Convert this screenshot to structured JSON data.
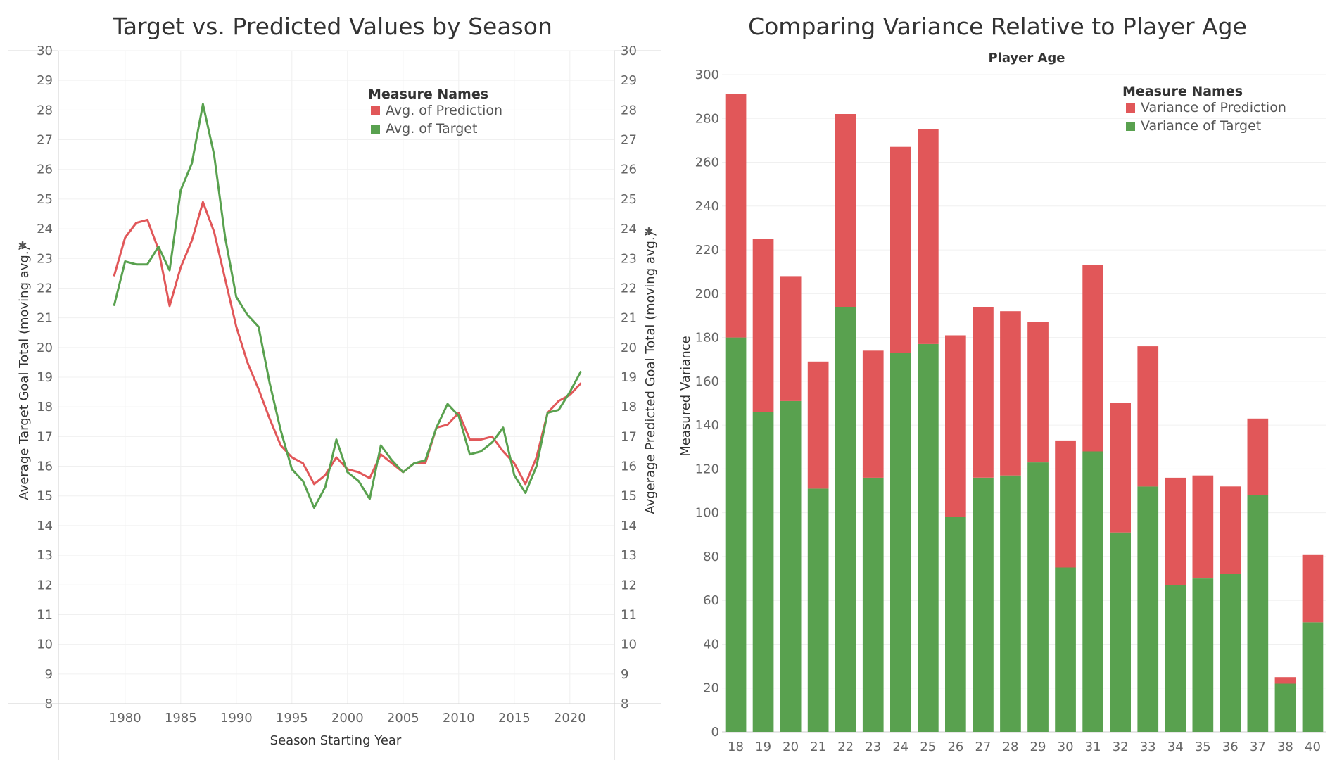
{
  "chart_data": [
    {
      "type": "line",
      "title": "Target vs. Predicted Values by Season",
      "xlabel": "Season Starting Year",
      "ylabel": "Average Target Goal Total (moving avg.)",
      "y2label": "Avgerage Predicted Goal Total (moving avg.)",
      "xlim": [
        1974,
        2024
      ],
      "ylim": [
        8,
        30
      ],
      "x_ticks": [
        "1980",
        "1985",
        "1990",
        "1995",
        "2000",
        "2005",
        "2010",
        "2015",
        "2020"
      ],
      "y_ticks": [
        "8",
        "9",
        "10",
        "11",
        "12",
        "13",
        "14",
        "15",
        "16",
        "17",
        "18",
        "19",
        "20",
        "21",
        "22",
        "23",
        "24",
        "25",
        "26",
        "27",
        "28",
        "29",
        "30"
      ],
      "legend": {
        "title": "Measure Names",
        "position": "top-right"
      },
      "x": [
        1979,
        1980,
        1981,
        1982,
        1983,
        1984,
        1985,
        1986,
        1987,
        1988,
        1989,
        1990,
        1991,
        1992,
        1993,
        1994,
        1995,
        1996,
        1997,
        1998,
        1999,
        2000,
        2001,
        2002,
        2003,
        2004,
        2005,
        2006,
        2007,
        2008,
        2009,
        2010,
        2011,
        2012,
        2013,
        2014,
        2015,
        2016,
        2017,
        2018,
        2019,
        2020,
        2021
      ],
      "series": [
        {
          "name": "Avg. of Prediction",
          "color": "#e15759",
          "values": [
            22.4,
            23.7,
            24.2,
            24.3,
            23.3,
            21.4,
            22.7,
            23.6,
            24.9,
            23.9,
            22.3,
            20.7,
            19.5,
            18.6,
            17.6,
            16.7,
            16.3,
            16.1,
            15.4,
            15.7,
            16.3,
            15.9,
            15.8,
            15.6,
            16.4,
            16.1,
            15.8,
            16.1,
            16.1,
            17.3,
            17.4,
            17.8,
            16.9,
            16.9,
            17.0,
            16.5,
            16.1,
            15.4,
            16.3,
            17.8,
            18.2,
            18.4,
            18.8
          ]
        },
        {
          "name": "Avg. of Target",
          "color": "#59a14f",
          "values": [
            21.4,
            22.9,
            22.8,
            22.8,
            23.4,
            22.6,
            25.3,
            26.2,
            28.2,
            26.5,
            23.7,
            21.7,
            21.1,
            20.7,
            18.8,
            17.2,
            15.9,
            15.5,
            14.6,
            15.3,
            16.9,
            15.8,
            15.5,
            14.9,
            16.7,
            16.2,
            15.8,
            16.1,
            16.2,
            17.3,
            18.1,
            17.7,
            16.4,
            16.5,
            16.8,
            17.3,
            15.7,
            15.1,
            16.0,
            17.8,
            17.9,
            18.5,
            19.2
          ]
        }
      ]
    },
    {
      "type": "bar",
      "stacked": true,
      "title": "Comparing Variance Relative to Player Age",
      "top_label": "Player Age",
      "xlabel": "",
      "ylabel": "Measured Variance",
      "ylim": [
        0,
        300
      ],
      "y_ticks": [
        "0",
        "20",
        "40",
        "60",
        "80",
        "100",
        "120",
        "140",
        "160",
        "180",
        "200",
        "220",
        "240",
        "260",
        "280",
        "300"
      ],
      "legend": {
        "title": "Measure Names",
        "position": "top-right"
      },
      "categories": [
        "18",
        "19",
        "20",
        "21",
        "22",
        "23",
        "24",
        "25",
        "26",
        "27",
        "28",
        "29",
        "30",
        "31",
        "32",
        "33",
        "34",
        "35",
        "36",
        "37",
        "38",
        "40"
      ],
      "series": [
        {
          "name": "Variance of Target",
          "color": "#59a14f",
          "values": [
            180,
            146,
            151,
            111,
            194,
            116,
            173,
            177,
            98,
            116,
            117,
            123,
            75,
            128,
            91,
            112,
            67,
            70,
            72,
            108,
            22,
            50
          ]
        },
        {
          "name": "Variance of Prediction",
          "color": "#e15759",
          "values": [
            111,
            79,
            57,
            58,
            88,
            58,
            94,
            98,
            83,
            78,
            75,
            64,
            58,
            85,
            59,
            64,
            49,
            47,
            40,
            35,
            3,
            31
          ]
        }
      ]
    }
  ]
}
